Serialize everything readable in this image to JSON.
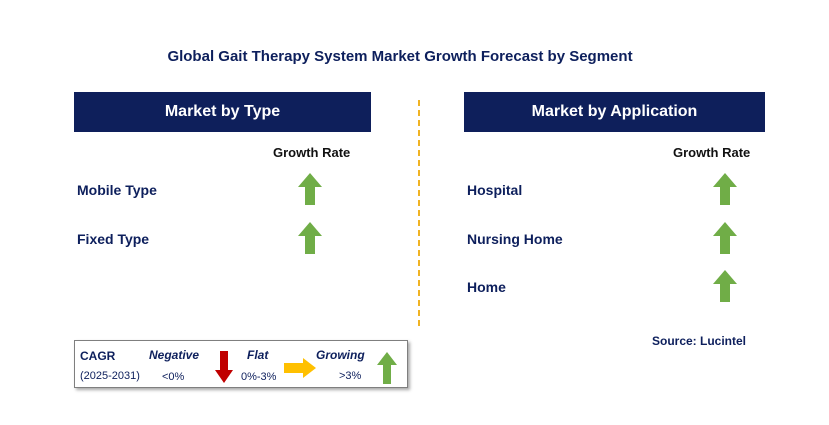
{
  "title": "Global Gait Therapy System Market Growth Forecast by Segment",
  "type_panel": {
    "header": "Market by Type",
    "growth_label": "Growth Rate",
    "rows": [
      {
        "label": "Mobile Type",
        "trend": "growing"
      },
      {
        "label": "Fixed Type",
        "trend": "growing"
      }
    ]
  },
  "application_panel": {
    "header": "Market by Application",
    "growth_label": "Growth Rate",
    "rows": [
      {
        "label": "Hospital",
        "trend": "growing"
      },
      {
        "label": "Nursing Home",
        "trend": "growing"
      },
      {
        "label": "Home",
        "trend": "growing"
      }
    ]
  },
  "legend": {
    "cagr": "CAGR",
    "period": "(2025-2031)",
    "negative": {
      "label": "Negative",
      "range": "<0%",
      "icon": "down-arrow-icon",
      "color": "#c00000"
    },
    "flat": {
      "label": "Flat",
      "range": "0%-3%",
      "icon": "right-arrow-icon",
      "color": "#ffc000"
    },
    "growing": {
      "label": "Growing",
      "range": ">3%",
      "icon": "up-arrow-icon",
      "color": "#70ad47"
    }
  },
  "source": "Source: Lucintel",
  "colors": {
    "header_bg": "#0e1f5b",
    "divider": "#f0b323",
    "up_arrow": "#70ad47"
  }
}
